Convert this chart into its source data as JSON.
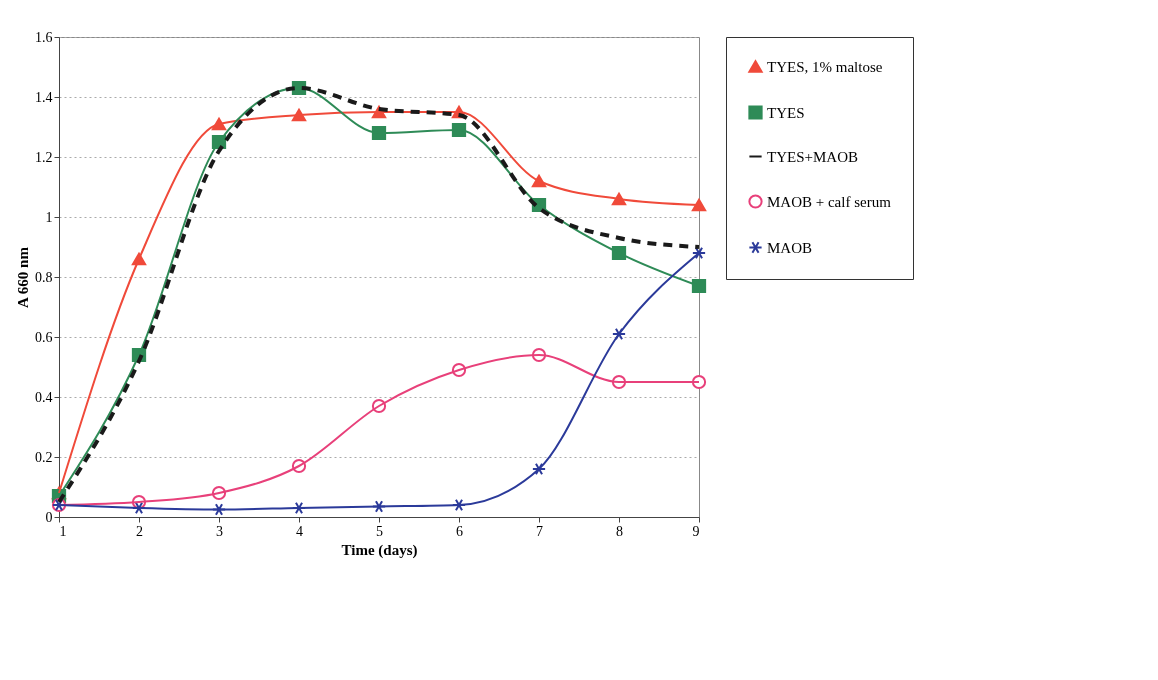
{
  "chart_data": {
    "type": "line",
    "xlabel": "Time (days)",
    "ylabel": "A 660 nm",
    "x": [
      1,
      2,
      3,
      4,
      5,
      6,
      7,
      8,
      9
    ],
    "series": [
      {
        "name": "TYES, 1% maltose",
        "color": "#f04a3a",
        "marker": "triangle",
        "line_style": "solid",
        "values": [
          0.08,
          0.86,
          1.31,
          1.34,
          1.35,
          1.35,
          1.12,
          1.06,
          1.04
        ]
      },
      {
        "name": "TYES",
        "color": "#2e8b57",
        "marker": "square",
        "line_style": "solid",
        "values": [
          0.07,
          0.54,
          1.25,
          1.43,
          1.28,
          1.29,
          1.04,
          0.88,
          0.77
        ]
      },
      {
        "name": "TYES+MAOB",
        "color": "#1a1a1a",
        "marker": "none",
        "line_style": "dashed",
        "values": [
          0.05,
          0.52,
          1.22,
          1.43,
          1.36,
          1.34,
          1.03,
          0.93,
          0.9
        ]
      },
      {
        "name": "MAOB + calf serum",
        "color": "#e8407a",
        "marker": "circle",
        "line_style": "solid",
        "values": [
          0.04,
          0.05,
          0.08,
          0.17,
          0.37,
          0.49,
          0.54,
          0.45,
          0.45
        ]
      },
      {
        "name": "MAOB",
        "color": "#2b3a9a",
        "marker": "cross",
        "line_style": "solid",
        "values": [
          0.04,
          0.03,
          0.025,
          0.03,
          0.035,
          0.04,
          0.16,
          0.61,
          0.88
        ]
      }
    ],
    "xlim": [
      1,
      9
    ],
    "xticks": [
      1,
      2,
      3,
      4,
      5,
      6,
      7,
      8,
      9
    ],
    "ylim": [
      0,
      1.6
    ],
    "yticks": [
      0,
      0.2,
      0.4,
      0.6,
      0.8,
      1,
      1.2,
      1.4,
      1.6
    ],
    "grid": "y",
    "legend": "right"
  }
}
